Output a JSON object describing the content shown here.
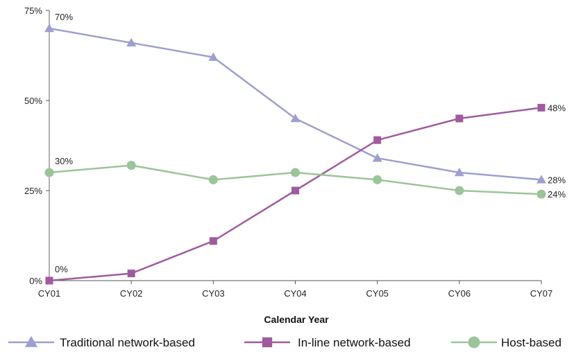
{
  "chart_data": {
    "type": "line",
    "categories": [
      "CY01",
      "CY02",
      "CY03",
      "CY04",
      "CY05",
      "CY06",
      "CY07"
    ],
    "xlabel": "Calendar Year",
    "ylabel": "",
    "ylim": [
      0,
      75
    ],
    "yticks": [
      "0%",
      "25%",
      "50%",
      "75%"
    ],
    "ytick_values": [
      0,
      25,
      50,
      75
    ],
    "grid": false,
    "legend_position": "bottom",
    "series": [
      {
        "name": "Traditional network-based",
        "values": [
          70,
          66,
          62,
          45,
          34,
          30,
          28
        ],
        "color": "#9e9fd0",
        "marker": "triangle",
        "labels": [
          {
            "index": 0,
            "text": "70%"
          },
          {
            "index": 6,
            "text": "28%"
          }
        ]
      },
      {
        "name": "In-line network-based",
        "values": [
          0,
          2,
          11,
          25,
          39,
          45,
          48
        ],
        "color": "#a05a9e",
        "marker": "square",
        "labels": [
          {
            "index": 0,
            "text": "0%"
          },
          {
            "index": 6,
            "text": "48%"
          }
        ]
      },
      {
        "name": "Host-based",
        "values": [
          30,
          32,
          28,
          30,
          28,
          25,
          24
        ],
        "color": "#9cc49a",
        "marker": "circle",
        "labels": [
          {
            "index": 0,
            "text": "30%"
          },
          {
            "index": 6,
            "text": "24%"
          }
        ]
      }
    ]
  }
}
